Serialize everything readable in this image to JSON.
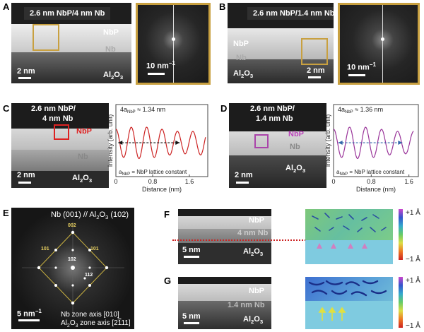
{
  "panels": {
    "A": {
      "letter": "A",
      "title": "2.6 nm NbP/4 nm Nb",
      "nbp": "NbP",
      "nb": "Nb",
      "scale": "2 nm",
      "substrate": "Al",
      "sub": "2",
      "o": "O",
      "sub3": "3",
      "fft_scale": "10 nm",
      "fft_sup": "−1"
    },
    "B": {
      "letter": "B",
      "title": "2.6 nm NbP/1.4 nm Nb",
      "nbp": "NbP",
      "nb": "Nb",
      "scale": "2 nm",
      "substrate": "Al",
      "sub": "2",
      "o": "O",
      "sub3": "3",
      "fft_scale": "10 nm",
      "fft_sup": "−1"
    },
    "C": {
      "letter": "C",
      "title_l1": "2.6 nm NbP/",
      "title_l2": "4 nm Nb",
      "nbp": "NbP",
      "nb": "Nb",
      "scale": "2 nm",
      "substrate": "Al",
      "sub": "2",
      "o": "O",
      "sub3": "3"
    },
    "D": {
      "letter": "D",
      "title_l1": "2.6 nm NbP/",
      "title_l2": "1.4 nm Nb",
      "nbp": "NbP",
      "nb": "Nb",
      "scale": "2 nm",
      "substrate": "Al",
      "sub": "2",
      "o": "O",
      "sub3": "3"
    },
    "E": {
      "letter": "E",
      "title": "Nb (001) // Al",
      "title_b": " (102)",
      "spots": [
        "002",
        "101",
        "101",
        "102",
        "112"
      ],
      "scale": "5 nm",
      "scale_sup": "−1",
      "zone1": "Nb zone axis [010]",
      "zone2_a": "Al",
      "zone2_b": " zone axis [2",
      "zone2_c": "11]"
    },
    "F": {
      "letter": "F",
      "nbp": "NbP",
      "nb": "4 nm Nb",
      "scale": "5 nm",
      "substrate": "Al",
      "cb_top": "+1 Å",
      "cb_bot": "−1 Å"
    },
    "G": {
      "letter": "G",
      "nbp": "NbP",
      "nb": "1.4 nm Nb",
      "scale": "5 nm",
      "substrate": "Al",
      "cb_top": "+1 Å",
      "cb_bot": "−1 Å"
    }
  },
  "chart_data": [
    {
      "type": "line",
      "panel": "C",
      "ylabel": "Intensity (arb. unit)",
      "xlabel": "Distance (nm)",
      "xticks": [
        "0",
        "0.8",
        "1.6"
      ],
      "xlim": [
        0,
        2.0
      ],
      "annotation": "4a",
      "annotation_sub": "NbP",
      "annotation_val": " ≈ 1.34 nm",
      "footnote": "a",
      "footnote_sub": "NbP",
      "footnote_val": " = NbP lattice constant",
      "color": "#cc2222",
      "arrow_color": "#111111",
      "period_nm": 0.335,
      "x_start": 0.0,
      "x_end": 1.95,
      "arrow_from": 0.05,
      "arrow_to": 1.39
    },
    {
      "type": "line",
      "panel": "D",
      "ylabel": "Intensity (arb. unit)",
      "xlabel": "Distance (nm)",
      "xticks": [
        "0",
        "0.8",
        "1.6"
      ],
      "xlim": [
        0,
        1.8
      ],
      "annotation": "4a",
      "annotation_sub": "NbP",
      "annotation_val": " ≈ 1.36 nm",
      "footnote": "a",
      "footnote_sub": "NbP",
      "footnote_val": " = NbP lattice constant",
      "color": "#993399",
      "arrow_color": "#3366aa",
      "period_nm": 0.34,
      "x_start": 0.0,
      "x_end": 1.7,
      "arrow_from": 0.1,
      "arrow_to": 1.46
    }
  ],
  "colors": {
    "gold": "#c8a040",
    "red": "#dd2222",
    "purple": "#aa44aa",
    "dotted_red": "#cc2222"
  }
}
